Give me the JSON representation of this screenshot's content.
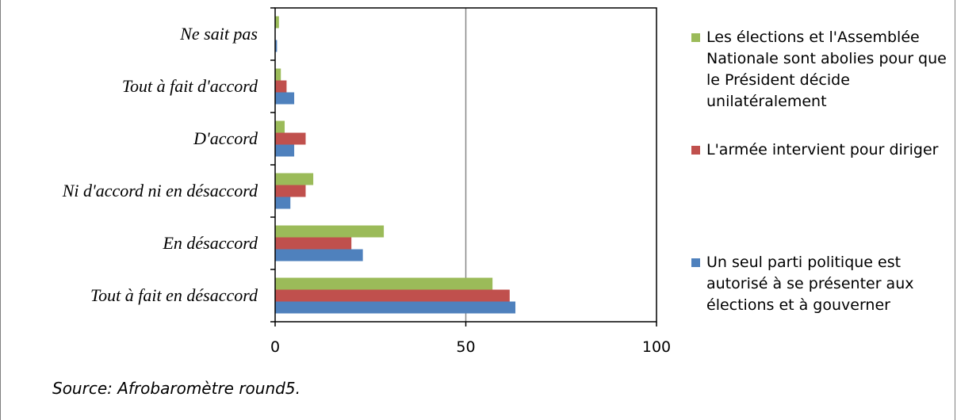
{
  "chart_data": {
    "type": "bar",
    "orientation": "horizontal",
    "categories": [
      "Tout à fait en désaccord",
      "En désaccord",
      "Ni d'accord ni en désaccord",
      "D'accord",
      "Tout à fait d'accord",
      "Ne sait pas"
    ],
    "series": [
      {
        "name": "Un seul parti politique est autorisé à se présenter aux élections et à gouverner",
        "color": "#4f81bd",
        "values": [
          63,
          23,
          4,
          5,
          5,
          0.5
        ]
      },
      {
        "name": "L'armée intervient pour diriger",
        "color": "#c0504d",
        "values": [
          61.5,
          20,
          8,
          8,
          3,
          0
        ]
      },
      {
        "name": "Les élections et l'Assemblée Nationale  sont abolies pour que le Président décide unilatéralement",
        "color": "#9bbb59",
        "values": [
          57,
          28.5,
          10,
          2.5,
          1.5,
          1
        ]
      }
    ],
    "xlim": [
      0,
      100
    ],
    "xticks": [
      0,
      50,
      100
    ],
    "xtick_labels": [
      "0",
      "50",
      "100"
    ],
    "grid": "vertical major gridlines",
    "legend_position": "right"
  },
  "legend": {
    "items": [
      {
        "label": "Les élections et l'Assemblée Nationale  sont abolies pour que le Président décide unilatéralement",
        "color": "#9bbb59"
      },
      {
        "label": "L'armée intervient pour diriger",
        "color": "#c0504d"
      },
      {
        "label": "Un seul parti politique est autorisé à se présenter aux élections et à gouverner",
        "color": "#4f81bd"
      }
    ]
  },
  "source": "Source: Afrobaromètre  round5."
}
